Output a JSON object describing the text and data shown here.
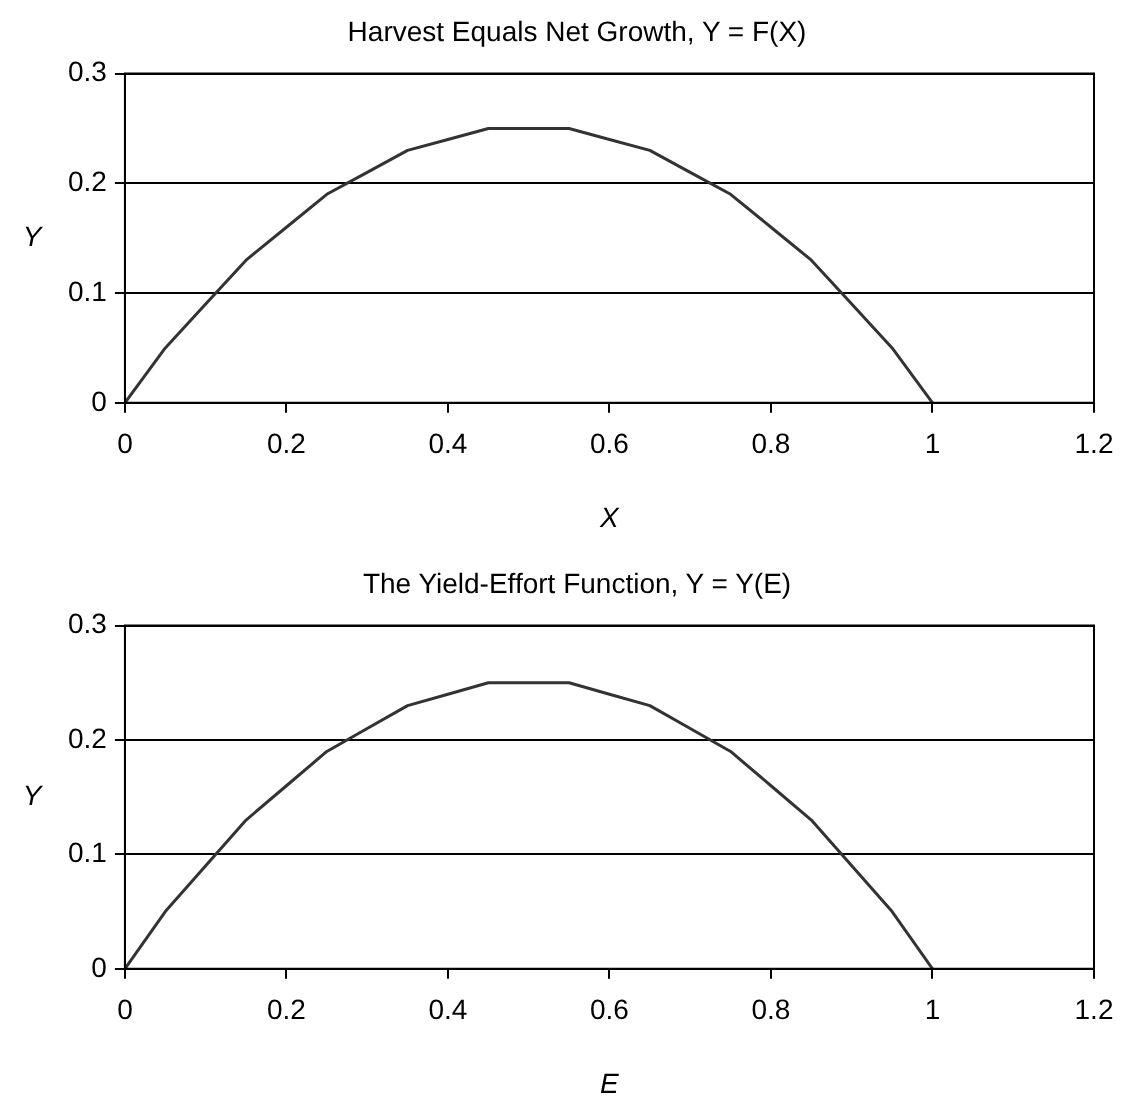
{
  "chart_data": [
    {
      "type": "line",
      "title": "Harvest Equals Net Growth, Y = F(X)",
      "xlabel": "X",
      "ylabel": "Y",
      "x": [
        0,
        0.05,
        0.1,
        0.15,
        0.2,
        0.25,
        0.3,
        0.35,
        0.4,
        0.45,
        0.5,
        0.55,
        0.6,
        0.65,
        0.7,
        0.75,
        0.8,
        0.85,
        0.9,
        0.95,
        1
      ],
      "values": [
        0,
        0.05,
        0.09,
        0.13,
        0.16,
        0.19,
        0.21,
        0.23,
        0.24,
        0.25,
        0.25,
        0.25,
        0.24,
        0.23,
        0.21,
        0.19,
        0.16,
        0.13,
        0.09,
        0.05,
        0
      ],
      "color": "#333333",
      "xlim": [
        0,
        1.2
      ],
      "xticks": [
        0,
        0.2,
        0.4,
        0.6,
        0.8,
        1,
        1.2
      ],
      "ylim": [
        0,
        0.3
      ],
      "yticks": [
        0,
        0.1,
        0.2,
        0.3
      ],
      "grid": "y"
    },
    {
      "type": "line",
      "title": "The Yield-Effort Function, Y = Y(E)",
      "xlabel": "E",
      "ylabel": "Y",
      "x": [
        0,
        0.05,
        0.1,
        0.15,
        0.2,
        0.25,
        0.3,
        0.35,
        0.4,
        0.45,
        0.5,
        0.55,
        0.6,
        0.65,
        0.7,
        0.75,
        0.8,
        0.85,
        0.9,
        0.95,
        1
      ],
      "values": [
        0,
        0.05,
        0.09,
        0.13,
        0.16,
        0.19,
        0.21,
        0.23,
        0.24,
        0.25,
        0.25,
        0.25,
        0.24,
        0.23,
        0.21,
        0.19,
        0.16,
        0.13,
        0.09,
        0.05,
        0
      ],
      "color": "#333333",
      "xlim": [
        0,
        1.2
      ],
      "xticks": [
        0,
        0.2,
        0.4,
        0.6,
        0.8,
        1,
        1.2
      ],
      "ylim": [
        0,
        0.3
      ],
      "yticks": [
        0,
        0.1,
        0.2,
        0.3
      ],
      "grid": "y"
    }
  ]
}
